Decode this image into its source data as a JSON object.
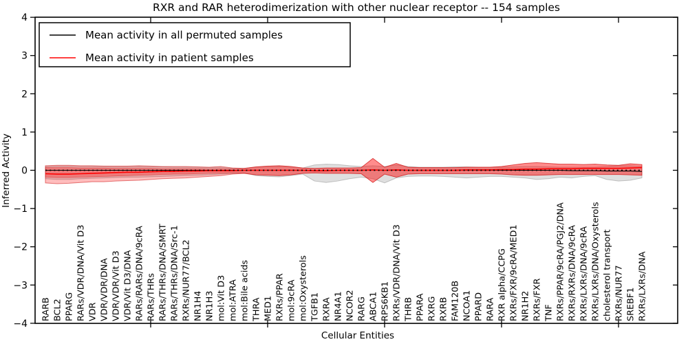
{
  "title_bar": {
    "title": "RXR and RAR heterodimerization with other nuclear receptor -- 154 samples"
  },
  "axes": {
    "xlabel": "Cellular Entities",
    "ylabel": "Inferred Activity",
    "ytick_labels": [
      "4",
      "3",
      "2",
      "1",
      "0",
      "−1",
      "−2",
      "−3",
      "−4"
    ],
    "ytick_values": [
      4,
      3,
      2,
      1,
      0,
      -1,
      -2,
      -3,
      -4
    ],
    "xtick_data_positions": [
      0,
      10,
      20,
      30,
      40,
      50
    ],
    "ylim": [
      -4,
      4
    ]
  },
  "legend": {
    "entries": [
      {
        "label": "Mean activity in all permuted samples",
        "color": "#000000"
      },
      {
        "label": "Mean activity in patient samples",
        "color": "#ff0000"
      }
    ],
    "position": "upper left"
  },
  "chart_data": {
    "type": "line",
    "title": "RXR and RAR heterodimerization with other nuclear receptor -- 154 samples",
    "xlabel": "Cellular Entities",
    "ylabel": "Inferred Activity",
    "ylim": [
      -4,
      4
    ],
    "grid": false,
    "legend_position": "upper left",
    "categories": [
      "RARB",
      "BCL2",
      "PPARG",
      "RARs/VDR/DNA/Vit D3",
      "VDR",
      "VDR/VDR/DNA",
      "VDR/VDR/Vit D3",
      "VDR/Vit D3/DNA",
      "RARs/RARs/DNA/9cRA",
      "RARs/THRs",
      "RARs/THRs/DNA/SMRT",
      "RARs/THRs/DNA/Src-1",
      "RXRs/NUR77/BCL2",
      "NR1H4",
      "NR1H3",
      "mol:Vit D3",
      "mol:ATRA",
      "mol:Bile acids",
      "THRA",
      "MED1",
      "RXRs/PPAR",
      "mol:9cRA",
      "mol:Oxysterols",
      "TGFB1",
      "RXRA",
      "NR4A1",
      "NCOR2",
      "RARG",
      "ABCA1",
      "RPS6KB1",
      "RXRs/VDR/DNA/Vit D3",
      "THRB",
      "PPARA",
      "RXRG",
      "RXRB",
      "FAM120B",
      "NCOA1",
      "PPARD",
      "RARA",
      "RXR alpha/CCPG",
      "RXRs/FXR/9cRA/MED1",
      "NR1H2",
      "RXRs/FXR",
      "TNF",
      "RXRs/PPAR/9cRA/PGJ2/DNA",
      "RXRs/RXRs/DNA/9cRA",
      "RXRs/LXRs/DNA/9cRA",
      "RXRs/LXRs/DNA/Oxysterols",
      "cholesterol transport",
      "RXRs/NUR77",
      "SREBF1",
      "RXRs/LXRs/DNA"
    ],
    "series": [
      {
        "name": "Mean activity in all permuted samples",
        "color": "#000000",
        "values": [
          0,
          0,
          0,
          0,
          0,
          0,
          0,
          0,
          0,
          0,
          0,
          0,
          0,
          0,
          0,
          0,
          0,
          0,
          0,
          0,
          0,
          0,
          0,
          -0.01,
          -0.01,
          0,
          0,
          0,
          0.01,
          0,
          0,
          0,
          0,
          0,
          0,
          0,
          0,
          0,
          0,
          0,
          0,
          0,
          0,
          0,
          0,
          -0.01,
          -0.01,
          -0.01,
          -0.02,
          -0.02,
          -0.02,
          -0.03
        ],
        "band_upper": [
          0.1,
          0.11,
          0.11,
          0.1,
          0.1,
          0.1,
          0.09,
          0.09,
          0.1,
          0.09,
          0.09,
          0.08,
          0.08,
          0.08,
          0.07,
          0.08,
          0.05,
          0.05,
          0.08,
          0.09,
          0.1,
          0.08,
          0.06,
          0.14,
          0.16,
          0.15,
          0.12,
          0.1,
          0.12,
          0.1,
          0.14,
          0.1,
          0.08,
          0.08,
          0.08,
          0.09,
          0.09,
          0.08,
          0.08,
          0.08,
          0.09,
          0.1,
          0.1,
          0.09,
          0.08,
          0.08,
          0.08,
          0.08,
          0.1,
          0.12,
          0.12,
          0.1
        ],
        "band_lower": [
          -0.22,
          -0.24,
          -0.24,
          -0.22,
          -0.21,
          -0.2,
          -0.19,
          -0.18,
          -0.18,
          -0.17,
          -0.16,
          -0.15,
          -0.14,
          -0.13,
          -0.12,
          -0.1,
          -0.08,
          -0.07,
          -0.14,
          -0.16,
          -0.17,
          -0.14,
          -0.1,
          -0.28,
          -0.32,
          -0.28,
          -0.22,
          -0.18,
          -0.22,
          -0.33,
          -0.2,
          -0.16,
          -0.15,
          -0.15,
          -0.16,
          -0.18,
          -0.2,
          -0.18,
          -0.16,
          -0.16,
          -0.18,
          -0.2,
          -0.24,
          -0.22,
          -0.18,
          -0.2,
          -0.16,
          -0.14,
          -0.24,
          -0.28,
          -0.26,
          -0.2
        ]
      },
      {
        "name": "Mean activity in patient samples",
        "color": "#ff0000",
        "values": [
          -0.09,
          -0.1,
          -0.1,
          -0.09,
          -0.08,
          -0.07,
          -0.06,
          -0.05,
          -0.05,
          -0.04,
          -0.03,
          -0.03,
          -0.02,
          -0.02,
          -0.01,
          -0.01,
          -0.01,
          0,
          0,
          0,
          0,
          0,
          0,
          -0.01,
          -0.01,
          0,
          0,
          0,
          0.01,
          0,
          0.01,
          0,
          0,
          0,
          0,
          0,
          0.01,
          0.01,
          0.01,
          0.02,
          0.02,
          0.03,
          0.03,
          0.04,
          0.04,
          0.04,
          0.05,
          0.05,
          0.05,
          0.05,
          0.06,
          0.07
        ],
        "band_outer_upper": [
          0.12,
          0.13,
          0.13,
          0.12,
          0.12,
          0.11,
          0.11,
          0.11,
          0.12,
          0.11,
          0.1,
          0.1,
          0.1,
          0.09,
          0.08,
          0.1,
          0.06,
          0.05,
          0.09,
          0.11,
          0.12,
          0.1,
          0.06,
          0.05,
          0.06,
          0.06,
          0.06,
          0.07,
          0.31,
          0.08,
          0.18,
          0.08,
          0.07,
          0.07,
          0.07,
          0.07,
          0.08,
          0.08,
          0.08,
          0.1,
          0.14,
          0.18,
          0.2,
          0.18,
          0.16,
          0.16,
          0.15,
          0.16,
          0.14,
          0.13,
          0.17,
          0.15
        ],
        "band_outer_lower": [
          -0.33,
          -0.35,
          -0.34,
          -0.32,
          -0.3,
          -0.3,
          -0.28,
          -0.27,
          -0.26,
          -0.24,
          -0.22,
          -0.21,
          -0.2,
          -0.18,
          -0.16,
          -0.14,
          -0.1,
          -0.08,
          -0.12,
          -0.13,
          -0.14,
          -0.12,
          -0.08,
          -0.07,
          -0.08,
          -0.08,
          -0.08,
          -0.09,
          -0.32,
          -0.1,
          -0.18,
          -0.1,
          -0.09,
          -0.09,
          -0.09,
          -0.09,
          -0.09,
          -0.09,
          -0.09,
          -0.1,
          -0.12,
          -0.13,
          -0.13,
          -0.12,
          -0.11,
          -0.11,
          -0.11,
          -0.11,
          -0.11,
          -0.11,
          -0.12,
          -0.13
        ],
        "band_inner_upper": [
          0.07,
          0.07,
          0.07,
          0.06,
          0.06,
          0.06,
          0.05,
          0.05,
          0.05,
          0.05,
          0.04,
          0.04,
          0.04,
          0.04,
          0.03,
          0.04,
          0.03,
          0.05,
          0.09,
          0.11,
          0.12,
          0.1,
          0.06,
          0.05,
          0.06,
          0.06,
          0.06,
          0.07,
          0.31,
          0.08,
          0.18,
          0.08,
          0.07,
          0.07,
          0.07,
          0.07,
          0.08,
          0.08,
          0.08,
          0.1,
          0.14,
          0.18,
          0.2,
          0.18,
          0.16,
          0.16,
          0.15,
          0.16,
          0.14,
          0.13,
          0.17,
          0.15
        ],
        "band_inner_lower": [
          -0.18,
          -0.19,
          -0.19,
          -0.18,
          -0.17,
          -0.16,
          -0.15,
          -0.14,
          -0.13,
          -0.12,
          -0.11,
          -0.1,
          -0.1,
          -0.09,
          -0.08,
          -0.08,
          -0.07,
          -0.08,
          -0.12,
          -0.13,
          -0.14,
          -0.12,
          -0.08,
          -0.07,
          -0.08,
          -0.08,
          -0.08,
          -0.09,
          -0.32,
          -0.1,
          -0.18,
          -0.1,
          -0.09,
          -0.09,
          -0.09,
          -0.09,
          -0.09,
          -0.09,
          -0.09,
          -0.1,
          -0.12,
          -0.13,
          -0.13,
          -0.12,
          -0.11,
          -0.11,
          -0.11,
          -0.11,
          -0.11,
          -0.11,
          -0.12,
          -0.13
        ]
      }
    ],
    "zero_line": {
      "shown": true,
      "style": "dotted",
      "color": "#000000"
    },
    "colors": {
      "permuted_band_fill": "rgba(110,110,110,0.22)",
      "permuted_band_edge": "rgba(130,130,130,0.45)",
      "patient_band_fill": "rgba(255,0,0,0.26)",
      "patient_band_edge": "rgba(205,20,20,0.55)",
      "frame": "#000000",
      "background": "#ffffff"
    }
  }
}
